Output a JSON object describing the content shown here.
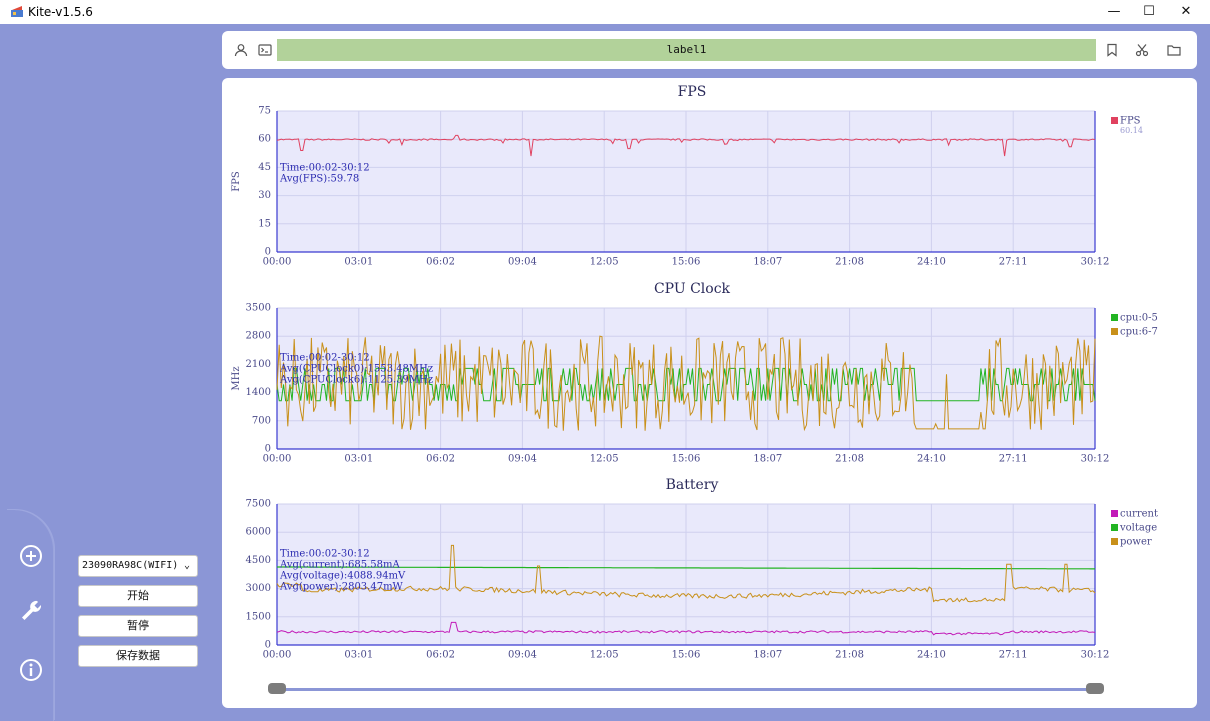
{
  "window": {
    "title": "Kite-v1.5.6",
    "minimize": "—",
    "maximize": "☐",
    "close": "✕"
  },
  "colors": {
    "background": "#8b96d6",
    "plot_bg": "#e9e9fb",
    "label_bg": "#b2d29a",
    "fps": "#e0415f",
    "cpu0": "#22b422",
    "cpu6": "#c8901a",
    "current": "#c21ab8",
    "voltage": "#22b422",
    "power": "#c8901a"
  },
  "topbar": {
    "label": "label1",
    "icons": [
      "user-icon",
      "terminal-icon",
      "bookmark-icon",
      "scissors-icon",
      "folder-icon"
    ]
  },
  "sidebar": {
    "icons": [
      "add-circle-icon",
      "wrench-icon",
      "info-icon"
    ]
  },
  "controls": {
    "device": "23090RA98C(WIFI)",
    "start": "开始",
    "pause": "暂停",
    "save": "保存数据"
  },
  "chart_data": [
    {
      "type": "line",
      "title": "FPS",
      "ylabel": "FPS",
      "ylim": [
        0,
        75
      ],
      "yticks": [
        "0",
        "15",
        "30",
        "45",
        "60",
        "75"
      ],
      "x_ticks": [
        "00:00",
        "03:01",
        "06:02",
        "09:04",
        "12:05",
        "15:06",
        "18:07",
        "21:08",
        "24:10",
        "27:11",
        "30:12"
      ],
      "annotations": [
        "Time:00:02-30:12",
        "Avg(FPS):59.78"
      ],
      "legend_position": "right",
      "series": [
        {
          "name": "FPS",
          "sublabel": "60.14",
          "base": 59.8,
          "spikes": [
            [
              0.03,
              54
            ],
            [
              0.22,
              62
            ],
            [
              0.31,
              51
            ],
            [
              0.43,
              55
            ],
            [
              0.89,
              51
            ],
            [
              0.97,
              56
            ]
          ]
        }
      ]
    },
    {
      "type": "line",
      "title": "CPU Clock",
      "ylabel": "MHz",
      "ylim": [
        0,
        3500
      ],
      "yticks": [
        "0",
        "700",
        "1400",
        "2100",
        "2800",
        "3500"
      ],
      "x_ticks": [
        "00:00",
        "03:01",
        "06:02",
        "09:04",
        "12:05",
        "15:06",
        "18:07",
        "21:08",
        "24:10",
        "27:11",
        "30:12"
      ],
      "annotations": [
        "Time:00:02-30:12",
        "Avg(CPUClock0):1553.48MHz",
        "Avg(CPUClock6):1125.39MHz"
      ],
      "legend_position": "right",
      "series": [
        {
          "name": "cpu:0-5",
          "levels": [
            1200,
            1600,
            2000
          ]
        },
        {
          "name": "cpu:6-7",
          "range": [
            450,
            2800
          ]
        }
      ]
    },
    {
      "type": "line",
      "title": "Battery",
      "ylabel": "",
      "ylim": [
        0,
        7500
      ],
      "yticks": [
        "0",
        "1500",
        "3000",
        "4500",
        "6000",
        "7500"
      ],
      "x_ticks": [
        "00:00",
        "03:01",
        "06:02",
        "09:04",
        "12:05",
        "15:06",
        "18:07",
        "21:08",
        "24:10",
        "27:11",
        "30:12"
      ],
      "annotations": [
        "Time:00:02-30:12",
        "Avg(current):685.58mA",
        "Avg(voltage):4088.94mV",
        "Avg(power):2803.47mW"
      ],
      "legend_position": "right",
      "series": [
        {
          "name": "current",
          "base": 700
        },
        {
          "name": "voltage",
          "start": 4150,
          "end": 4050
        },
        {
          "name": "power",
          "base": 2800
        }
      ]
    }
  ]
}
